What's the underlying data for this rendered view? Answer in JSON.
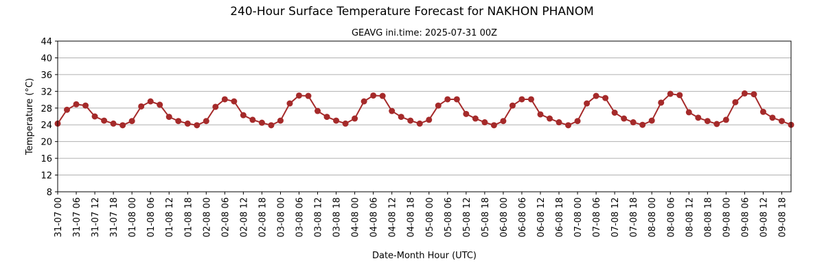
{
  "chart_data": {
    "type": "line",
    "title": "240-Hour Surface Temperature Forecast for NAKHON PHANOM",
    "subtitle": "GEAVG ini.time: 2025-07-31 00Z",
    "xlabel": "Date-Month Hour (UTC)",
    "ylabel": "Temperature (°C)",
    "ylim": [
      8,
      44
    ],
    "yticks": [
      8,
      12,
      16,
      20,
      24,
      28,
      32,
      36,
      40,
      44
    ],
    "grid": "horizontal",
    "colors": {
      "series": "#a52a2a"
    },
    "x_start": "2025-07-31 00Z",
    "x_step_hours": 3,
    "xtick_labels": [
      "31-07 00",
      "31-07 06",
      "31-07 12",
      "31-07 18",
      "01-08 00",
      "01-08 06",
      "01-08 12",
      "01-08 18",
      "02-08 00",
      "02-08 06",
      "02-08 12",
      "02-08 18",
      "03-08 00",
      "03-08 06",
      "03-08 12",
      "03-08 18",
      "04-08 00",
      "04-08 06",
      "04-08 12",
      "04-08 18",
      "05-08 00",
      "05-08 06",
      "05-08 12",
      "05-08 18",
      "06-08 00",
      "06-08 06",
      "06-08 12",
      "06-08 18",
      "07-08 00",
      "07-08 06",
      "07-08 12",
      "07-08 18",
      "08-08 00",
      "08-08 06",
      "08-08 12",
      "08-08 18",
      "09-08 00",
      "09-08 06",
      "09-08 12",
      "09-08 18"
    ],
    "series": [
      {
        "name": "",
        "values": [
          24.3,
          27.6,
          28.9,
          28.6,
          26.0,
          25.0,
          24.3,
          23.9,
          24.9,
          28.4,
          29.6,
          28.8,
          25.9,
          24.9,
          24.3,
          23.9,
          24.9,
          28.3,
          30.1,
          29.6,
          26.3,
          25.2,
          24.5,
          23.9,
          25.0,
          29.1,
          31.0,
          30.9,
          27.3,
          25.9,
          25.0,
          24.3,
          25.5,
          29.6,
          31.0,
          30.9,
          27.3,
          25.9,
          25.0,
          24.3,
          25.2,
          28.6,
          30.1,
          30.1,
          26.6,
          25.5,
          24.6,
          23.9,
          24.9,
          28.6,
          30.1,
          30.1,
          26.5,
          25.5,
          24.6,
          23.9,
          24.9,
          29.1,
          30.9,
          30.4,
          26.9,
          25.5,
          24.6,
          24.0,
          25.0,
          29.3,
          31.4,
          31.1,
          27.0,
          25.7,
          24.9,
          24.2,
          25.2,
          29.4,
          31.5,
          31.3,
          27.1,
          25.7,
          24.9,
          24.0
        ]
      }
    ]
  }
}
